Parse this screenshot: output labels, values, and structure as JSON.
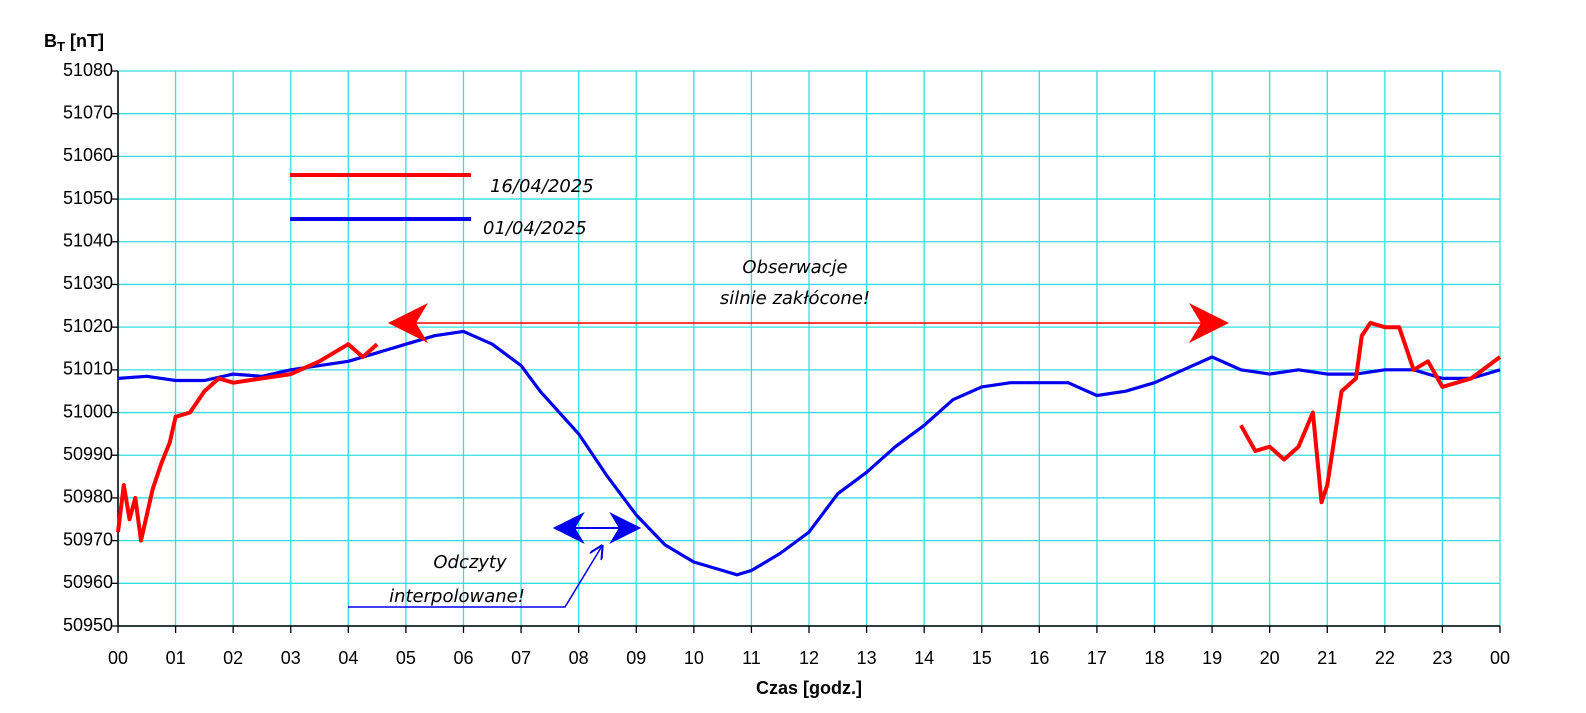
{
  "chart_data": {
    "type": "line",
    "y_label": {
      "text": "B",
      "subscript": "T",
      "unit": "[nT]"
    },
    "x_label": "Czas [godz.]",
    "xlim": [
      0,
      24
    ],
    "xticks": [
      {
        "value": 0,
        "label": "00"
      },
      {
        "value": 1,
        "label": "01"
      },
      {
        "value": 2,
        "label": "02"
      },
      {
        "value": 3,
        "label": "03"
      },
      {
        "value": 4,
        "label": "04"
      },
      {
        "value": 5,
        "label": "05"
      },
      {
        "value": 6,
        "label": "06"
      },
      {
        "value": 7,
        "label": "07"
      },
      {
        "value": 8,
        "label": "08"
      },
      {
        "value": 9,
        "label": "09"
      },
      10,
      11,
      12,
      13,
      14,
      15,
      16,
      17,
      18,
      19,
      20,
      21,
      22,
      23,
      {
        "value": 24,
        "label": "00"
      }
    ],
    "ylim": [
      50950,
      51080
    ],
    "yticks": [
      50950,
      50960,
      50970,
      50980,
      50990,
      51000,
      51010,
      51020,
      51030,
      51040,
      51050,
      51060,
      51070,
      51080
    ],
    "grid": true,
    "grid_color": "#33dede",
    "series": [
      {
        "name": "16/04/2025",
        "color": "#ff0000",
        "x": [
          0,
          0.1,
          0.2,
          0.3,
          0.4,
          0.5,
          0.6,
          0.75,
          0.9,
          1,
          1.25,
          1.5,
          1.75,
          2,
          2.5,
          3,
          3.5,
          4,
          4.25,
          4.5,
          19.5,
          19.5,
          19.75,
          20,
          20.25,
          20.5,
          20.75,
          20.9,
          21,
          21.25,
          21.5,
          21.6,
          21.75,
          22,
          22.25,
          22.5,
          22.75,
          23,
          23.5,
          24
        ],
        "values": [
          50972,
          50983,
          50975,
          50980,
          50970,
          50976,
          50982,
          50988,
          50993,
          50999,
          51000,
          51005,
          51008,
          51007,
          51008,
          51009,
          51012,
          51016,
          51013,
          51016,
          null,
          50997,
          50991,
          50992,
          50989,
          50992,
          51000,
          50979,
          50983,
          51005,
          51008,
          51018,
          51021,
          51020,
          51020,
          51010,
          51012,
          51006,
          51008,
          51013
        ]
      },
      {
        "name": "01/04/2025",
        "color": "#0000ee",
        "x": [
          0,
          0.5,
          1,
          1.5,
          2,
          2.5,
          3,
          3.5,
          4,
          4.5,
          5,
          5.5,
          6,
          6.5,
          7,
          7.33,
          8,
          8.5,
          9,
          9.5,
          10,
          10.5,
          10.75,
          11,
          11.5,
          12,
          12.5,
          13,
          13.5,
          14,
          14.5,
          15,
          15.5,
          16,
          16.5,
          17,
          17.5,
          18,
          18.5,
          19,
          19.5,
          20,
          20.5,
          21,
          21.5,
          22,
          22.5,
          23,
          23.5,
          24
        ],
        "values": [
          51008,
          51008.5,
          51007.5,
          51007.5,
          51009,
          51008.5,
          51010,
          51011,
          51012,
          51014,
          51016,
          51018,
          51019,
          51016,
          51011,
          51005,
          50995,
          50985,
          50976,
          50969,
          50965,
          50963,
          50962,
          50963,
          50967,
          50972,
          50981,
          50986,
          50992,
          50997,
          51003,
          51006,
          51007,
          51007,
          51007,
          51004,
          51005,
          51007,
          51010,
          51013,
          51010,
          51009,
          51010,
          51009,
          51009,
          51010,
          51010,
          51008,
          51008,
          51010
        ]
      }
    ],
    "annotations": [
      {
        "lines": [
          "Obserwacje",
          "silnie zakłócone!"
        ],
        "color": "#ff0000"
      },
      {
        "lines": [
          "Odczyty",
          "interpolowane!"
        ],
        "color": "#0000ee"
      }
    ]
  }
}
